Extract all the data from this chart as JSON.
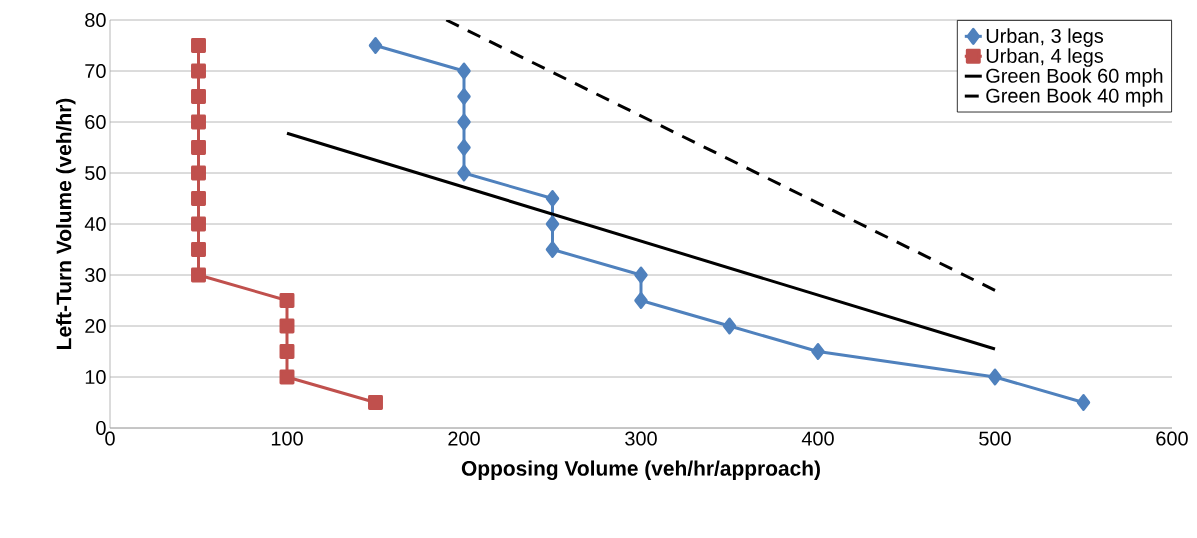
{
  "chart_data": {
    "type": "line",
    "xlabel": "Opposing Volume (veh/hr/approach)",
    "ylabel": "Left-Turn Volume (veh/hr)",
    "xlim": [
      0,
      600
    ],
    "ylim": [
      0,
      80
    ],
    "xticks": [
      0,
      100,
      200,
      300,
      400,
      500,
      600
    ],
    "yticks": [
      0,
      10,
      20,
      30,
      40,
      50,
      60,
      70,
      80
    ],
    "grid": "y",
    "legend": "top right",
    "series": [
      {
        "name": "Urban, 3 legs",
        "color": "#4f81bd",
        "marker": "diamond",
        "line_style": "solid",
        "x": [
          150,
          200,
          200,
          200,
          200,
          200,
          250,
          250,
          250,
          300,
          300,
          350,
          400,
          500,
          550
        ],
        "values": [
          75,
          70,
          65,
          60,
          55,
          50,
          45,
          40,
          35,
          30,
          25,
          20,
          15,
          10,
          5
        ]
      },
      {
        "name": "Urban, 4 legs",
        "color": "#c0504d",
        "marker": "square",
        "line_style": "solid",
        "x": [
          50,
          50,
          50,
          50,
          50,
          50,
          50,
          50,
          50,
          50,
          100,
          100,
          100,
          100,
          150
        ],
        "values": [
          75,
          70,
          65,
          60,
          55,
          50,
          45,
          40,
          35,
          30,
          25,
          20,
          15,
          10,
          5
        ]
      },
      {
        "name": "Green Book 60 mph",
        "color": "#000000",
        "marker": "none",
        "line_style": "solid",
        "x": [
          100,
          500
        ],
        "values": [
          57.8,
          15.5
        ]
      },
      {
        "name": "Green Book 40 mph",
        "color": "#000000",
        "marker": "none",
        "line_style": "dashed",
        "x": [
          190,
          500
        ],
        "values": [
          80,
          27
        ]
      }
    ]
  }
}
